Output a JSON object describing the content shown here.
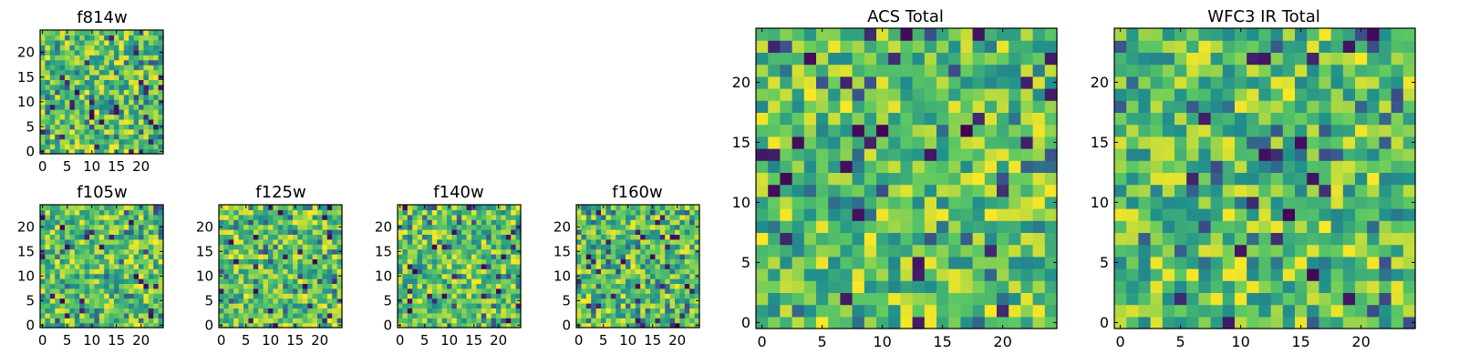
{
  "colormap": [
    "#440154",
    "#3b528b",
    "#21918c",
    "#5ec962",
    "#fde725"
  ],
  "chart_data": [
    {
      "type": "heatmap",
      "title": "f814w",
      "size": 25,
      "xticks": [
        0,
        5,
        10,
        15,
        20
      ],
      "yticks": [
        0,
        5,
        10,
        15,
        20
      ],
      "xlim": [
        0,
        25
      ],
      "ylim": [
        0,
        25
      ],
      "grid": false
    },
    {
      "type": "heatmap",
      "title": "f105w",
      "size": 25,
      "xticks": [
        0,
        5,
        10,
        15,
        20
      ],
      "yticks": [
        0,
        5,
        10,
        15,
        20
      ],
      "xlim": [
        0,
        25
      ],
      "ylim": [
        0,
        25
      ],
      "grid": false
    },
    {
      "type": "heatmap",
      "title": "f125w",
      "size": 25,
      "xticks": [
        0,
        5,
        10,
        15,
        20
      ],
      "yticks": [
        0,
        5,
        10,
        15,
        20
      ],
      "xlim": [
        0,
        25
      ],
      "ylim": [
        0,
        25
      ],
      "grid": false
    },
    {
      "type": "heatmap",
      "title": "f140w",
      "size": 25,
      "xticks": [
        0,
        5,
        10,
        15,
        20
      ],
      "yticks": [
        0,
        5,
        10,
        15,
        20
      ],
      "xlim": [
        0,
        25
      ],
      "ylim": [
        0,
        25
      ],
      "grid": false
    },
    {
      "type": "heatmap",
      "title": "f160w",
      "size": 25,
      "xticks": [
        0,
        5,
        10,
        15,
        20
      ],
      "yticks": [
        0,
        5,
        10,
        15,
        20
      ],
      "xlim": [
        0,
        25
      ],
      "ylim": [
        0,
        25
      ],
      "grid": false
    },
    {
      "type": "heatmap",
      "title": "ACS Total",
      "size": 25,
      "xticks": [
        0,
        5,
        10,
        15,
        20
      ],
      "yticks": [
        0,
        5,
        10,
        15,
        20
      ],
      "xlim": [
        0,
        25
      ],
      "ylim": [
        0,
        25
      ],
      "grid": false
    },
    {
      "type": "heatmap",
      "title": "WFC3 IR Total",
      "size": 25,
      "xticks": [
        0,
        5,
        10,
        15,
        20
      ],
      "yticks": [
        0,
        5,
        10,
        15,
        20
      ],
      "xlim": [
        0,
        25
      ],
      "ylim": [
        0,
        25
      ],
      "grid": false
    }
  ]
}
